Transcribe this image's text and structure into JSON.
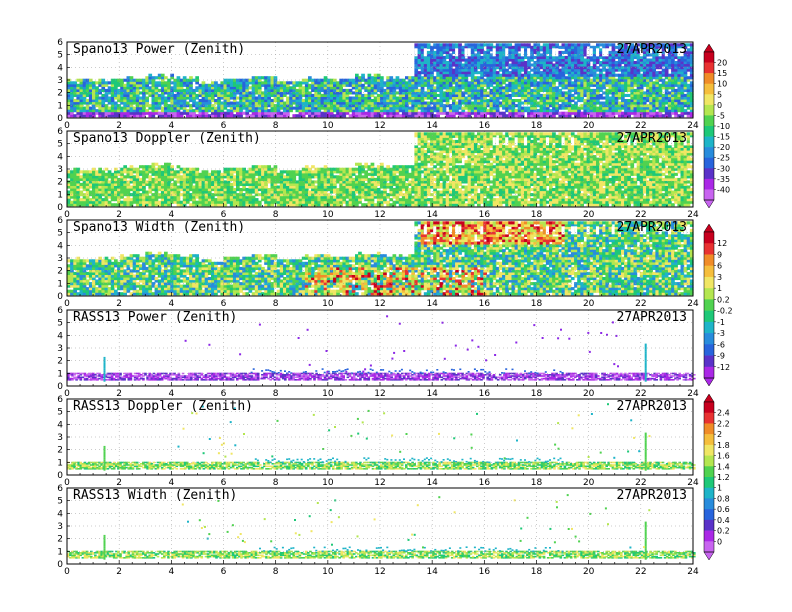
{
  "chart_data": {
    "type": "heatmap",
    "x_ticks": [
      "0",
      "2",
      "4",
      "6",
      "8",
      "10",
      "12",
      "14",
      "16",
      "18",
      "20",
      "22",
      "24"
    ],
    "y_ticks": [
      "0",
      "1",
      "2",
      "3",
      "4",
      "5",
      "6"
    ],
    "xlim": [
      0,
      24
    ],
    "ylim": [
      0,
      6
    ],
    "grid": true,
    "colorbars": [
      {
        "name": "power-doppler",
        "labels": [
          "20",
          "15",
          "10",
          "5",
          "0",
          "-5",
          "-10",
          "-15",
          "-20",
          "-25",
          "-30",
          "-35",
          "-40"
        ],
        "colors": [
          "#c8001e",
          "#e83232",
          "#f08c28",
          "#f5be3c",
          "#f0e664",
          "#b4e650",
          "#50d250",
          "#1ec878",
          "#1eb4c8",
          "#288cdc",
          "#2864dc",
          "#5a32c8",
          "#aa28e6",
          "#c864f0"
        ]
      },
      {
        "name": "width",
        "labels": [
          "12",
          "9",
          "6",
          "3",
          "1",
          "0.2",
          "-0.2",
          "-1",
          "-3",
          "-6",
          "-9",
          "-12"
        ],
        "colors": [
          "#c8001e",
          "#e83232",
          "#f08c28",
          "#f5be3c",
          "#f0e664",
          "#b4e650",
          "#50d250",
          "#1ec878",
          "#1eb4c8",
          "#288cdc",
          "#2864dc",
          "#5a32c8",
          "#aa28e6"
        ]
      },
      {
        "name": "rass",
        "labels": [
          "2.4",
          "2.2",
          "2",
          "1.8",
          "1.6",
          "1.4",
          "1.2",
          "1",
          "0.8",
          "0.6",
          "0.4",
          "0.2",
          "0"
        ],
        "colors": [
          "#c8001e",
          "#e83232",
          "#f08c28",
          "#f5be3c",
          "#f0e664",
          "#b4e650",
          "#50d250",
          "#1ec878",
          "#1eb4c8",
          "#288cdc",
          "#2864dc",
          "#5a32c8",
          "#aa28e6",
          "#c864f0"
        ]
      }
    ],
    "panels": [
      {
        "title": "Spano13 Power (Zenith)",
        "date": "27APR2013",
        "palette": "power"
      },
      {
        "title": "Spano13 Doppler (Zenith)",
        "date": "27APR2013",
        "palette": "doppler"
      },
      {
        "title": "Spano13 Width (Zenith)",
        "date": "27APR2013",
        "palette": "width"
      },
      {
        "title": "RASS13 Power (Zenith)",
        "date": "27APR2013",
        "palette": "rasspower"
      },
      {
        "title": "RASS13 Doppler (Zenith)",
        "date": "27APR2013",
        "palette": "rassdoppler"
      },
      {
        "title": "RASS13 Width (Zenith)",
        "date": "27APR2013",
        "palette": "rasswidth"
      }
    ]
  }
}
